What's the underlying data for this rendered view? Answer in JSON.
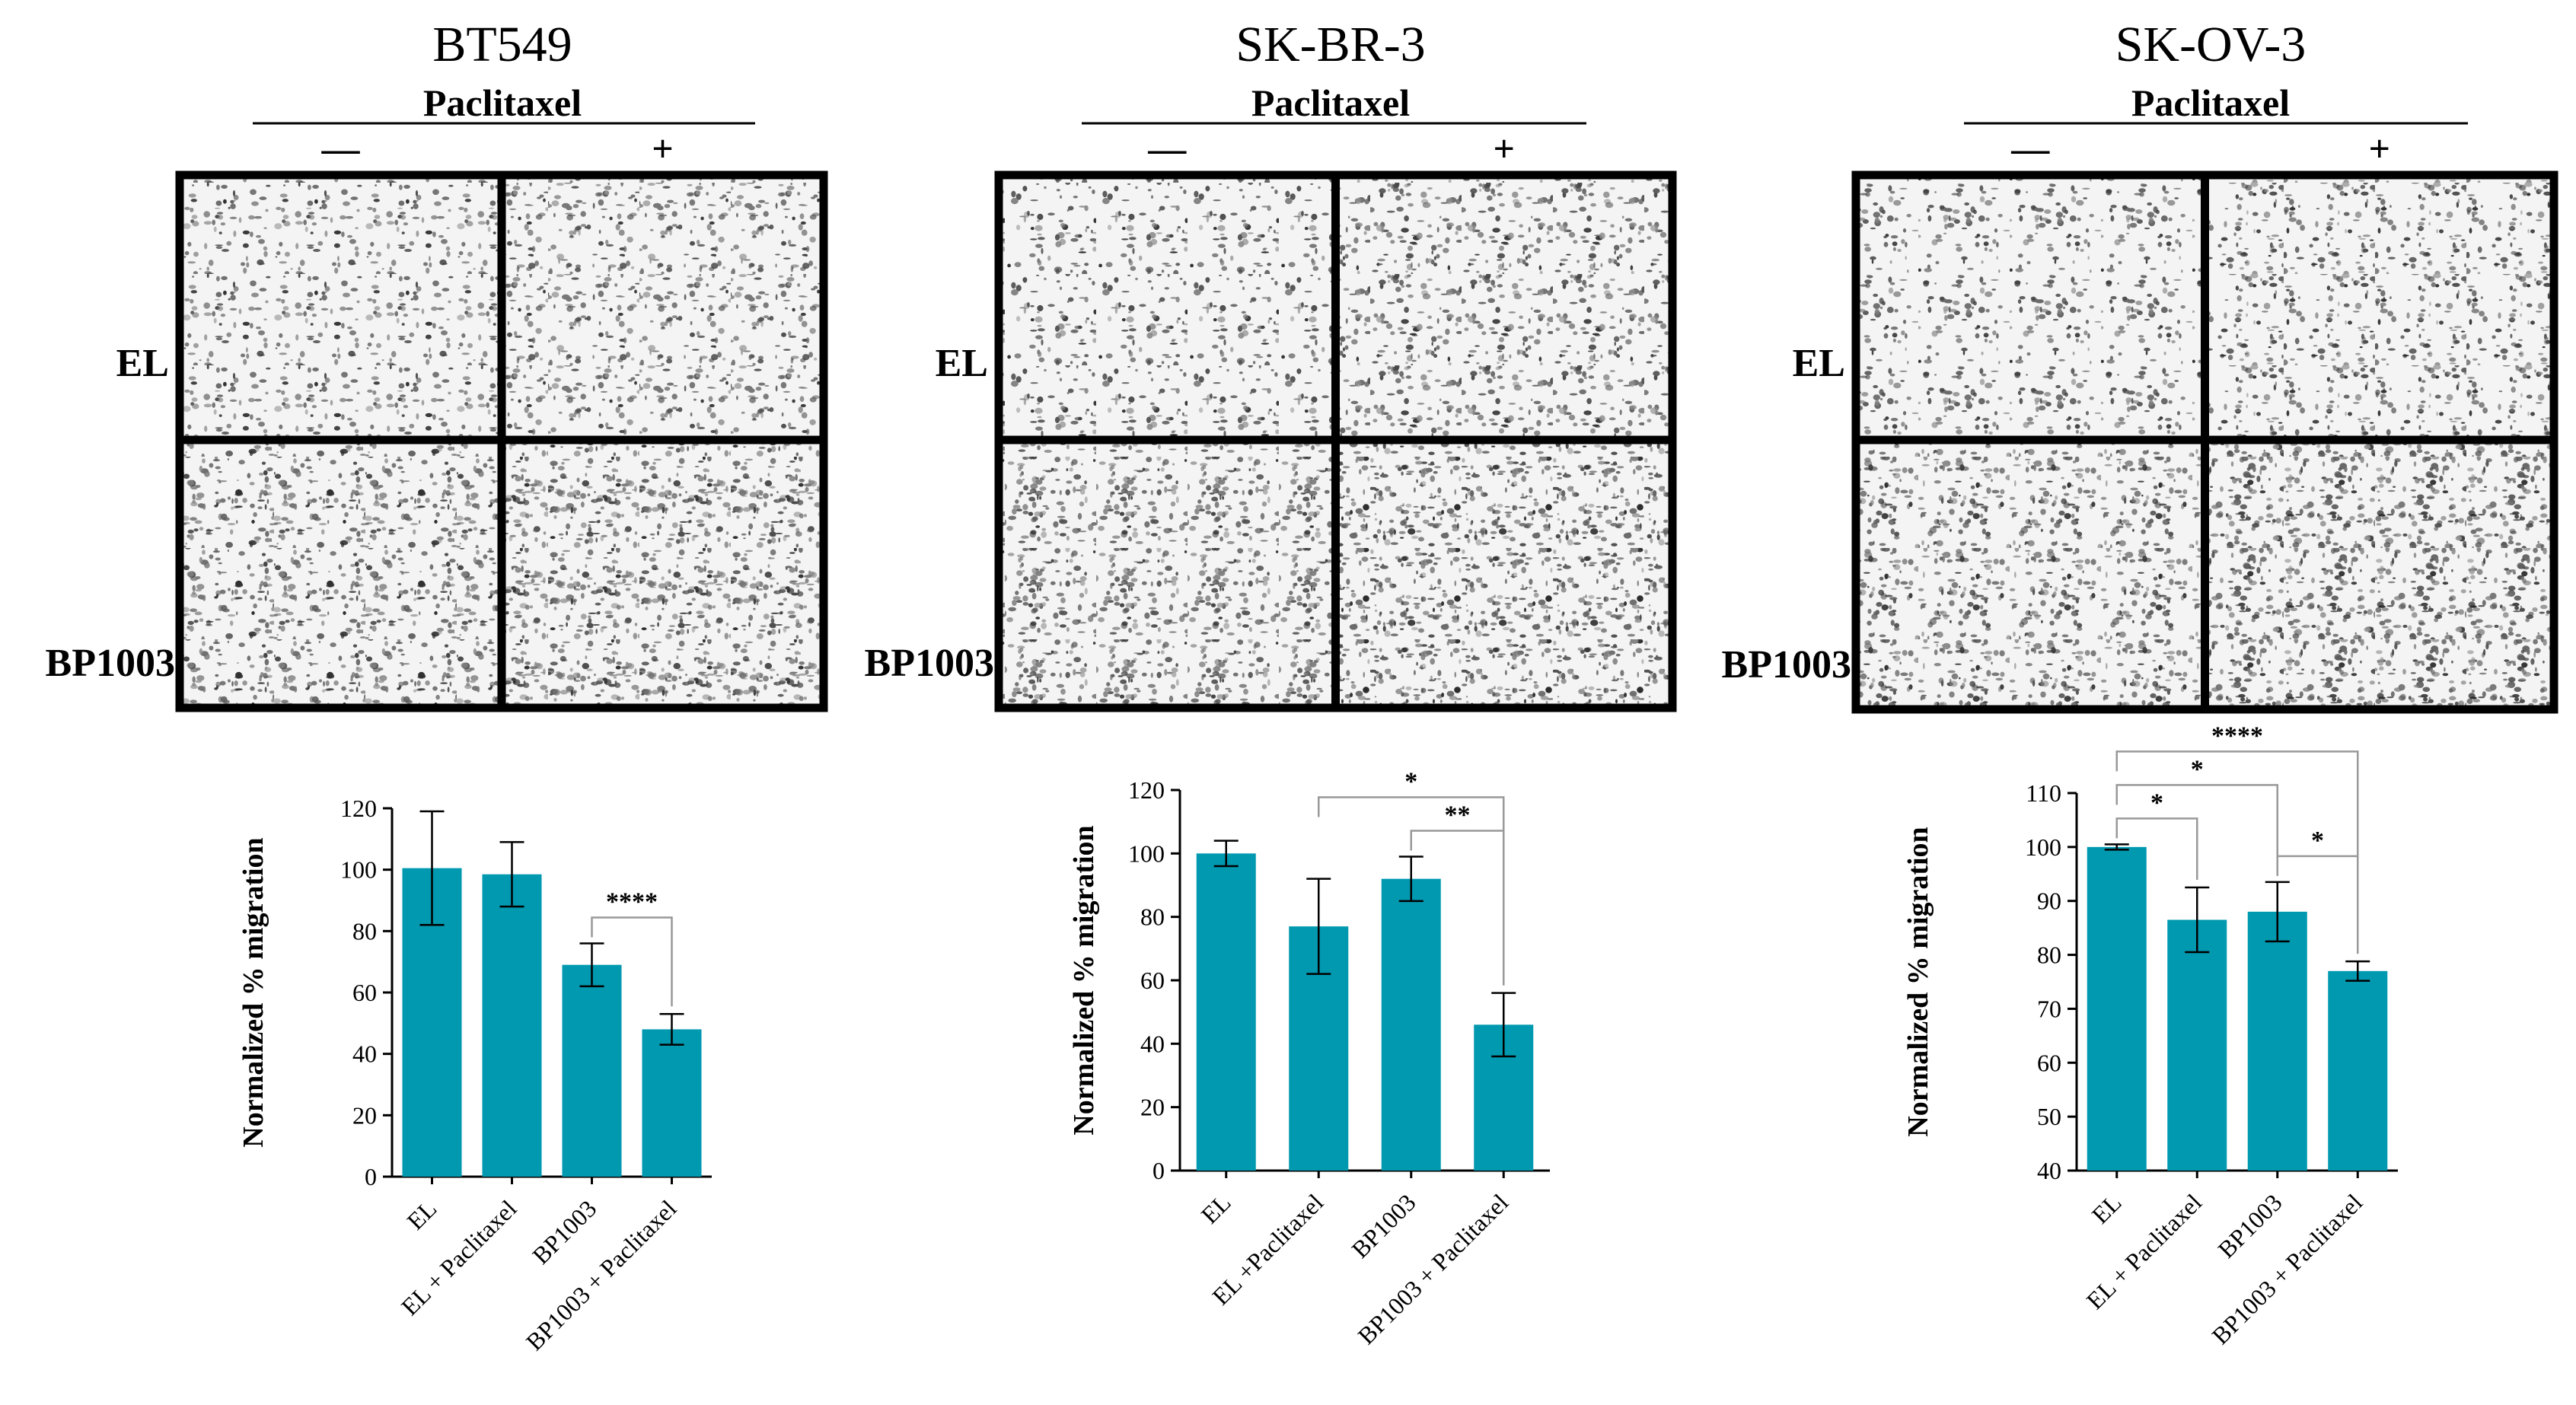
{
  "header_labels": {
    "treatment": "Paclitaxel",
    "minus": "—",
    "plus": "+",
    "row_top": "EL",
    "row_bottom": "BP1003"
  },
  "colors": {
    "bar": "#0099B0",
    "micrograph_bg": "#f4f4f4",
    "cells": "#3c3c3c",
    "frame": "#000000"
  },
  "panels": [
    {
      "title": "BT549",
      "chart_data": {
        "type": "bar",
        "title": "",
        "xlabel": "",
        "ylabel": "Normalized % migration",
        "categories": [
          "EL",
          "EL + Paclitaxel",
          "BP1003",
          "BP1003 + Paclitaxel"
        ],
        "values": [
          100.5,
          98.5,
          69,
          48
        ],
        "errors": [
          18.5,
          10.5,
          7,
          5
        ],
        "ylim": [
          0,
          120
        ],
        "yticks": [
          "0",
          "20",
          "40",
          "60",
          "80",
          "100",
          "120"
        ],
        "significance": [
          {
            "from": 2,
            "to": 3,
            "label": "****"
          }
        ]
      }
    },
    {
      "title": "SK-BR-3",
      "chart_data": {
        "type": "bar",
        "title": "",
        "xlabel": "",
        "ylabel": "Normalized % migration",
        "categories": [
          "EL",
          "EL +Paclitaxel",
          "BP1003",
          "BP1003 + Paclitaxel"
        ],
        "values": [
          100,
          77,
          92,
          46
        ],
        "errors": [
          4,
          15,
          7,
          10
        ],
        "ylim": [
          0,
          120
        ],
        "yticks": [
          "0",
          "20",
          "40",
          "60",
          "80",
          "100",
          "120"
        ],
        "significance": [
          {
            "from": 1,
            "to": 3,
            "label": "*"
          },
          {
            "from": 2,
            "to": 3,
            "label": "**"
          }
        ]
      }
    },
    {
      "title": "SK-OV-3",
      "chart_data": {
        "type": "bar",
        "title": "",
        "xlabel": "",
        "ylabel": "Normalized % migration",
        "categories": [
          "EL",
          "EL + Paclitaxel",
          "BP1003",
          "BP1003 + Paclitaxel"
        ],
        "values": [
          100,
          86.5,
          88,
          77
        ],
        "errors": [
          0.5,
          6,
          5.5,
          1.8
        ],
        "ylim": [
          40,
          110
        ],
        "yticks": [
          "40",
          "50",
          "60",
          "70",
          "80",
          "90",
          "100",
          "110"
        ],
        "significance": [
          {
            "from": 0,
            "to": 3,
            "label": "****"
          },
          {
            "from": 0,
            "to": 2,
            "label": "*"
          },
          {
            "from": 0,
            "to": 1,
            "label": "*"
          },
          {
            "from": 2,
            "to": 3,
            "label": "*"
          }
        ]
      }
    }
  ]
}
